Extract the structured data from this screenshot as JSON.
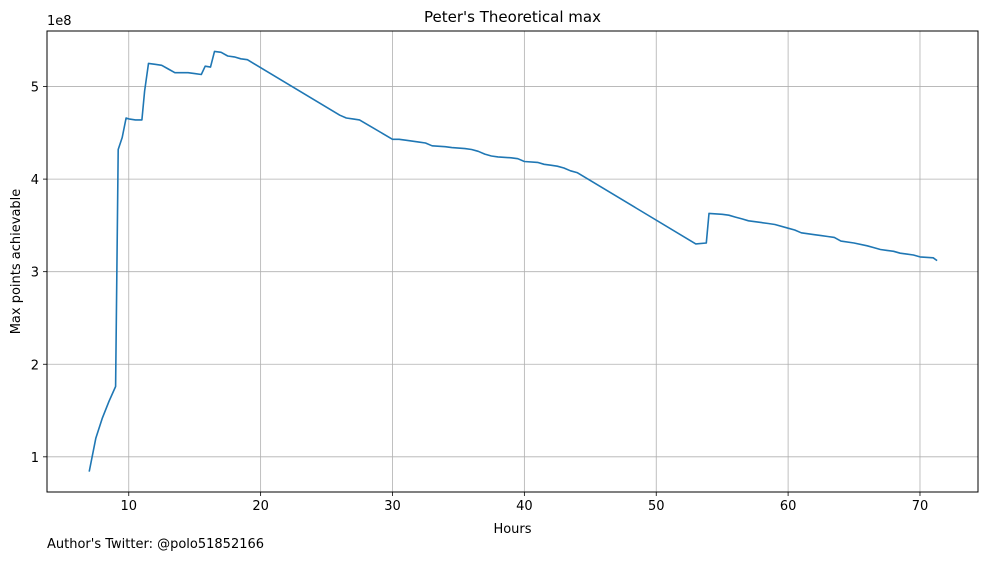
{
  "chart_data": {
    "type": "line",
    "title": "Peter's Theoretical max",
    "xlabel": "Hours",
    "ylabel": "Max points achievable",
    "y_offset_label": "1e8",
    "xlim": [
      3.8,
      74.4
    ],
    "ylim": [
      0.62,
      5.6
    ],
    "x_ticks": [
      10,
      20,
      30,
      40,
      50,
      60,
      70
    ],
    "y_ticks": [
      1,
      2,
      3,
      4,
      5
    ],
    "grid": true,
    "legend": "none",
    "series": [
      {
        "color": "#1f77b4",
        "x": [
          7.0,
          7.5,
          8.0,
          8.5,
          9.0,
          9.2,
          9.5,
          9.8,
          10.0,
          10.5,
          11.0,
          11.2,
          11.5,
          12.0,
          12.5,
          13.0,
          13.5,
          14.5,
          15.0,
          15.5,
          15.8,
          16.2,
          16.5,
          17.0,
          17.5,
          18.0,
          18.5,
          19.0,
          26.0,
          26.5,
          27.0,
          27.5,
          30.0,
          30.5,
          31.0,
          32.0,
          32.5,
          33.0,
          34.0,
          34.5,
          35.5,
          36.0,
          36.5,
          37.0,
          37.5,
          38.0,
          39.0,
          39.5,
          40.0,
          41.0,
          41.5,
          42.0,
          42.5,
          43.0,
          43.5,
          44.0,
          53.0,
          53.8,
          54.0,
          55.0,
          55.5,
          56.0,
          56.5,
          57.0,
          57.5,
          58.0,
          58.5,
          59.0,
          60.0,
          60.5,
          61.0,
          62.0,
          62.5,
          63.0,
          63.5,
          64.0,
          65.0,
          66.0,
          66.5,
          67.0,
          67.5,
          68.0,
          68.5,
          69.0,
          69.5,
          70.0,
          71.0,
          71.3
        ],
        "y": [
          0.84,
          1.2,
          1.42,
          1.6,
          1.76,
          4.32,
          4.45,
          4.66,
          4.65,
          4.64,
          4.64,
          4.95,
          5.25,
          5.24,
          5.23,
          5.19,
          5.15,
          5.15,
          5.14,
          5.13,
          5.22,
          5.21,
          5.38,
          5.37,
          5.33,
          5.32,
          5.3,
          5.29,
          4.69,
          4.66,
          4.65,
          4.64,
          4.43,
          4.43,
          4.42,
          4.4,
          4.39,
          4.36,
          4.35,
          4.34,
          4.33,
          4.32,
          4.3,
          4.27,
          4.25,
          4.24,
          4.23,
          4.22,
          4.19,
          4.18,
          4.16,
          4.15,
          4.14,
          4.12,
          4.09,
          4.07,
          3.3,
          3.31,
          3.63,
          3.62,
          3.61,
          3.59,
          3.57,
          3.55,
          3.54,
          3.53,
          3.52,
          3.51,
          3.47,
          3.45,
          3.42,
          3.4,
          3.39,
          3.38,
          3.37,
          3.33,
          3.31,
          3.28,
          3.26,
          3.24,
          3.23,
          3.22,
          3.2,
          3.19,
          3.18,
          3.16,
          3.15,
          3.12
        ]
      }
    ]
  },
  "footer": {
    "note": "Author's Twitter: @polo51852166"
  }
}
